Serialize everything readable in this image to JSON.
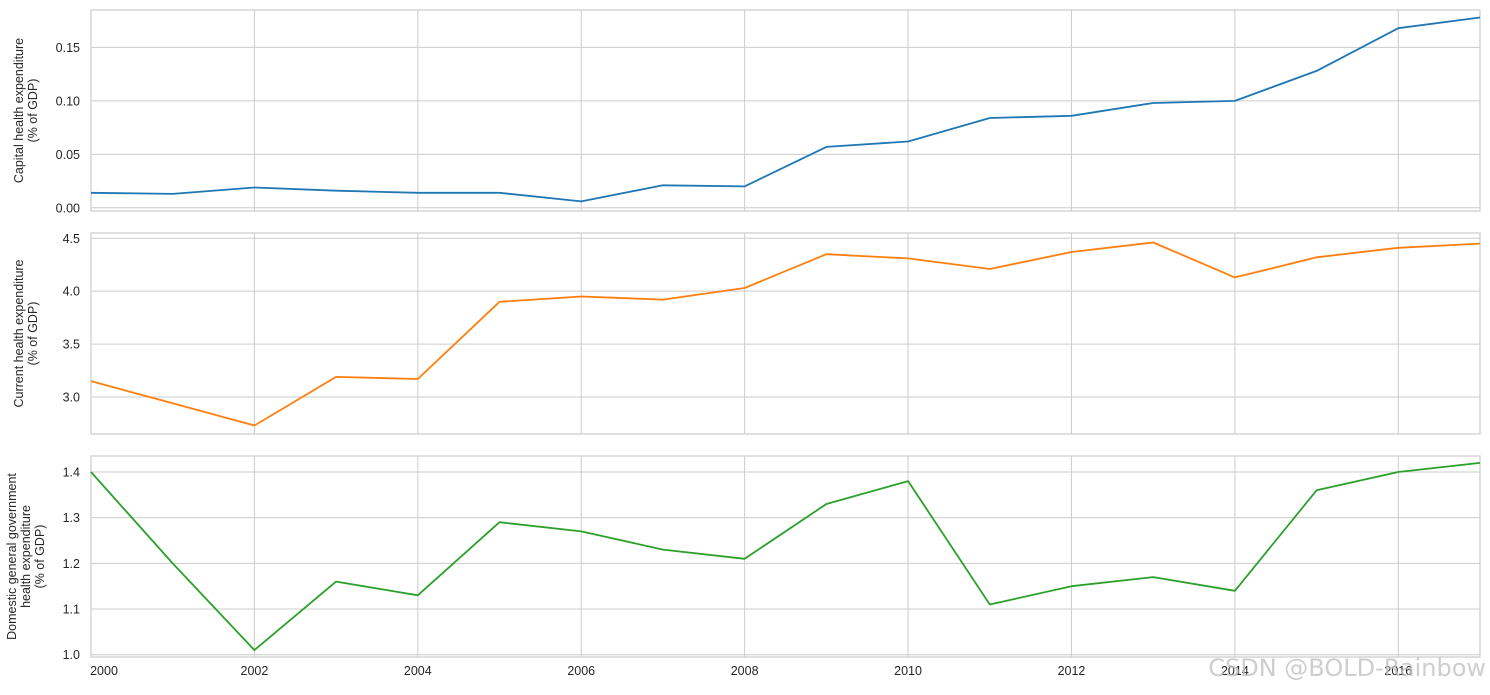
{
  "watermark": "CSDN @BOLD-Rainbow",
  "chart_data": [
    {
      "type": "line",
      "ylabel": [
        "Capital health expenditure",
        "(% of GDP)"
      ],
      "x": [
        2000,
        2001,
        2002,
        2003,
        2004,
        2005,
        2006,
        2007,
        2008,
        2009,
        2010,
        2011,
        2012,
        2013,
        2014,
        2015,
        2016,
        2017
      ],
      "values": [
        0.014,
        0.013,
        0.019,
        0.016,
        0.014,
        0.014,
        0.006,
        0.021,
        0.02,
        0.057,
        0.062,
        0.084,
        0.086,
        0.098,
        0.1,
        0.128,
        0.168,
        0.178
      ],
      "color": "#1f77b4",
      "xlim": [
        2000,
        2017
      ],
      "ylim": [
        -0.003,
        0.185
      ],
      "yticks": [
        0.0,
        0.05,
        0.1,
        0.15
      ],
      "ytick_labels": [
        "0.00",
        "0.05",
        "0.10",
        "0.15"
      ],
      "grid": true
    },
    {
      "type": "line",
      "ylabel": [
        "Current health expenditure",
        "(% of GDP)"
      ],
      "x": [
        2000,
        2001,
        2002,
        2003,
        2004,
        2005,
        2006,
        2007,
        2008,
        2009,
        2010,
        2011,
        2012,
        2013,
        2014,
        2015,
        2016,
        2017
      ],
      "values": [
        3.15,
        2.94,
        2.73,
        3.19,
        3.17,
        3.9,
        3.95,
        3.92,
        4.03,
        4.35,
        4.31,
        4.21,
        4.37,
        4.46,
        4.13,
        4.32,
        4.41,
        4.45
      ],
      "color": "#ff7f0e",
      "xlim": [
        2000,
        2017
      ],
      "ylim": [
        2.65,
        4.55
      ],
      "yticks": [
        3.0,
        3.5,
        4.0,
        4.5
      ],
      "ytick_labels": [
        "3.0",
        "3.5",
        "4.0",
        "4.5"
      ],
      "grid": true
    },
    {
      "type": "line",
      "ylabel": [
        "Domestic general government",
        "health expenditure",
        "(% of GDP)"
      ],
      "x": [
        2000,
        2001,
        2002,
        2003,
        2004,
        2005,
        2006,
        2007,
        2008,
        2009,
        2010,
        2011,
        2012,
        2013,
        2014,
        2015,
        2016,
        2017
      ],
      "values": [
        1.4,
        1.2,
        1.01,
        1.16,
        1.13,
        1.29,
        1.27,
        1.23,
        1.21,
        1.33,
        1.38,
        1.11,
        1.15,
        1.17,
        1.14,
        1.36,
        1.4,
        1.42
      ],
      "color": "#2ca02c",
      "xlim": [
        2000,
        2017
      ],
      "ylim": [
        0.995,
        1.435
      ],
      "yticks": [
        1.0,
        1.1,
        1.2,
        1.3,
        1.4
      ],
      "ytick_labels": [
        "1.0",
        "1.1",
        "1.2",
        "1.3",
        "1.4"
      ],
      "xticks": [
        2000,
        2002,
        2004,
        2006,
        2008,
        2010,
        2012,
        2014,
        2016
      ],
      "xtick_labels": [
        "2000",
        "2002",
        "2004",
        "2006",
        "2008",
        "2010",
        "2012",
        "2014",
        "2016"
      ],
      "grid": true
    }
  ]
}
